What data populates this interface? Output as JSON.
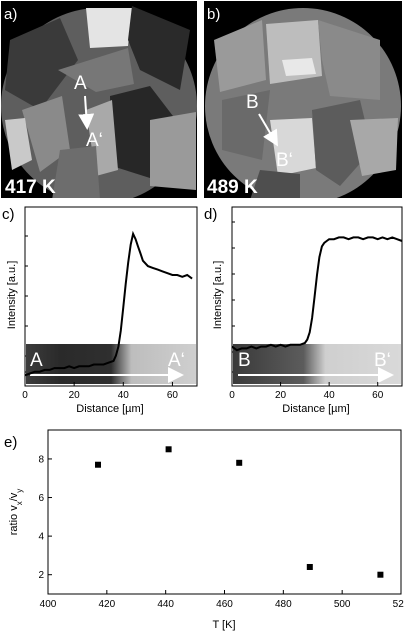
{
  "panels": {
    "a": {
      "label": "a)",
      "temperature": "417 K",
      "point_start": "A",
      "point_end": "A‘"
    },
    "b": {
      "label": "b)",
      "temperature": "489 K",
      "point_start": "B",
      "point_end": "B‘"
    },
    "c": {
      "label": "c)"
    },
    "d": {
      "label": "d)"
    },
    "e": {
      "label": "e)"
    }
  },
  "chart_data": [
    {
      "panel": "c",
      "type": "line",
      "xlabel": "Distance [µm]",
      "ylabel": "Intensity [a.u.]",
      "xlim": [
        0,
        70
      ],
      "x_ticks": [
        0,
        20,
        40,
        60
      ],
      "ylim": [
        0,
        1
      ],
      "strip_labels": [
        "A",
        "A‘"
      ],
      "series": [
        {
          "x": [
            0,
            2,
            4,
            6,
            8,
            10,
            12,
            14,
            16,
            18,
            20,
            22,
            24,
            26,
            28,
            30,
            32,
            34,
            36,
            37,
            38,
            39,
            40,
            41,
            42,
            43,
            44,
            45,
            46,
            47,
            48,
            50,
            52,
            54,
            56,
            58,
            60,
            62,
            64,
            66,
            68
          ],
          "values": [
            0.06,
            0.07,
            0.08,
            0.08,
            0.09,
            0.09,
            0.1,
            0.1,
            0.1,
            0.11,
            0.1,
            0.11,
            0.11,
            0.11,
            0.12,
            0.12,
            0.12,
            0.13,
            0.14,
            0.17,
            0.22,
            0.31,
            0.44,
            0.57,
            0.69,
            0.79,
            0.85,
            0.82,
            0.78,
            0.74,
            0.7,
            0.67,
            0.66,
            0.65,
            0.64,
            0.63,
            0.62,
            0.62,
            0.61,
            0.62,
            0.6
          ]
        }
      ]
    },
    {
      "panel": "d",
      "type": "line",
      "xlabel": "Distance [µm]",
      "ylabel": "Intensity [a.u.]",
      "xlim": [
        0,
        70
      ],
      "x_ticks": [
        0,
        20,
        40,
        60
      ],
      "ylim": [
        0,
        1
      ],
      "strip_labels": [
        "B",
        "B‘"
      ],
      "series": [
        {
          "x": [
            0,
            2,
            4,
            6,
            8,
            10,
            12,
            14,
            16,
            18,
            20,
            22,
            24,
            26,
            28,
            30,
            31,
            32,
            33,
            34,
            35,
            36,
            37,
            38,
            39,
            40,
            42,
            44,
            46,
            48,
            50,
            52,
            54,
            56,
            58,
            60,
            62,
            64,
            66,
            68,
            70
          ],
          "values": [
            0.22,
            0.2,
            0.21,
            0.21,
            0.22,
            0.21,
            0.22,
            0.22,
            0.23,
            0.22,
            0.23,
            0.22,
            0.23,
            0.23,
            0.23,
            0.24,
            0.26,
            0.3,
            0.38,
            0.5,
            0.62,
            0.72,
            0.78,
            0.8,
            0.81,
            0.82,
            0.82,
            0.83,
            0.83,
            0.82,
            0.83,
            0.83,
            0.82,
            0.83,
            0.83,
            0.82,
            0.83,
            0.82,
            0.83,
            0.82,
            0.81
          ]
        }
      ]
    },
    {
      "panel": "e",
      "type": "scatter",
      "xlabel": "T [K]",
      "ylabel": "ratio v_x/v_y",
      "xlim": [
        400,
        520
      ],
      "ylim": [
        1,
        9.5
      ],
      "x_ticks": [
        400,
        420,
        440,
        460,
        480,
        500,
        520
      ],
      "y_ticks": [
        2,
        4,
        6,
        8
      ],
      "series": [
        {
          "x": [
            417,
            441,
            465,
            489,
            513
          ],
          "values": [
            7.7,
            8.5,
            7.8,
            2.4,
            2.0
          ]
        }
      ]
    }
  ]
}
